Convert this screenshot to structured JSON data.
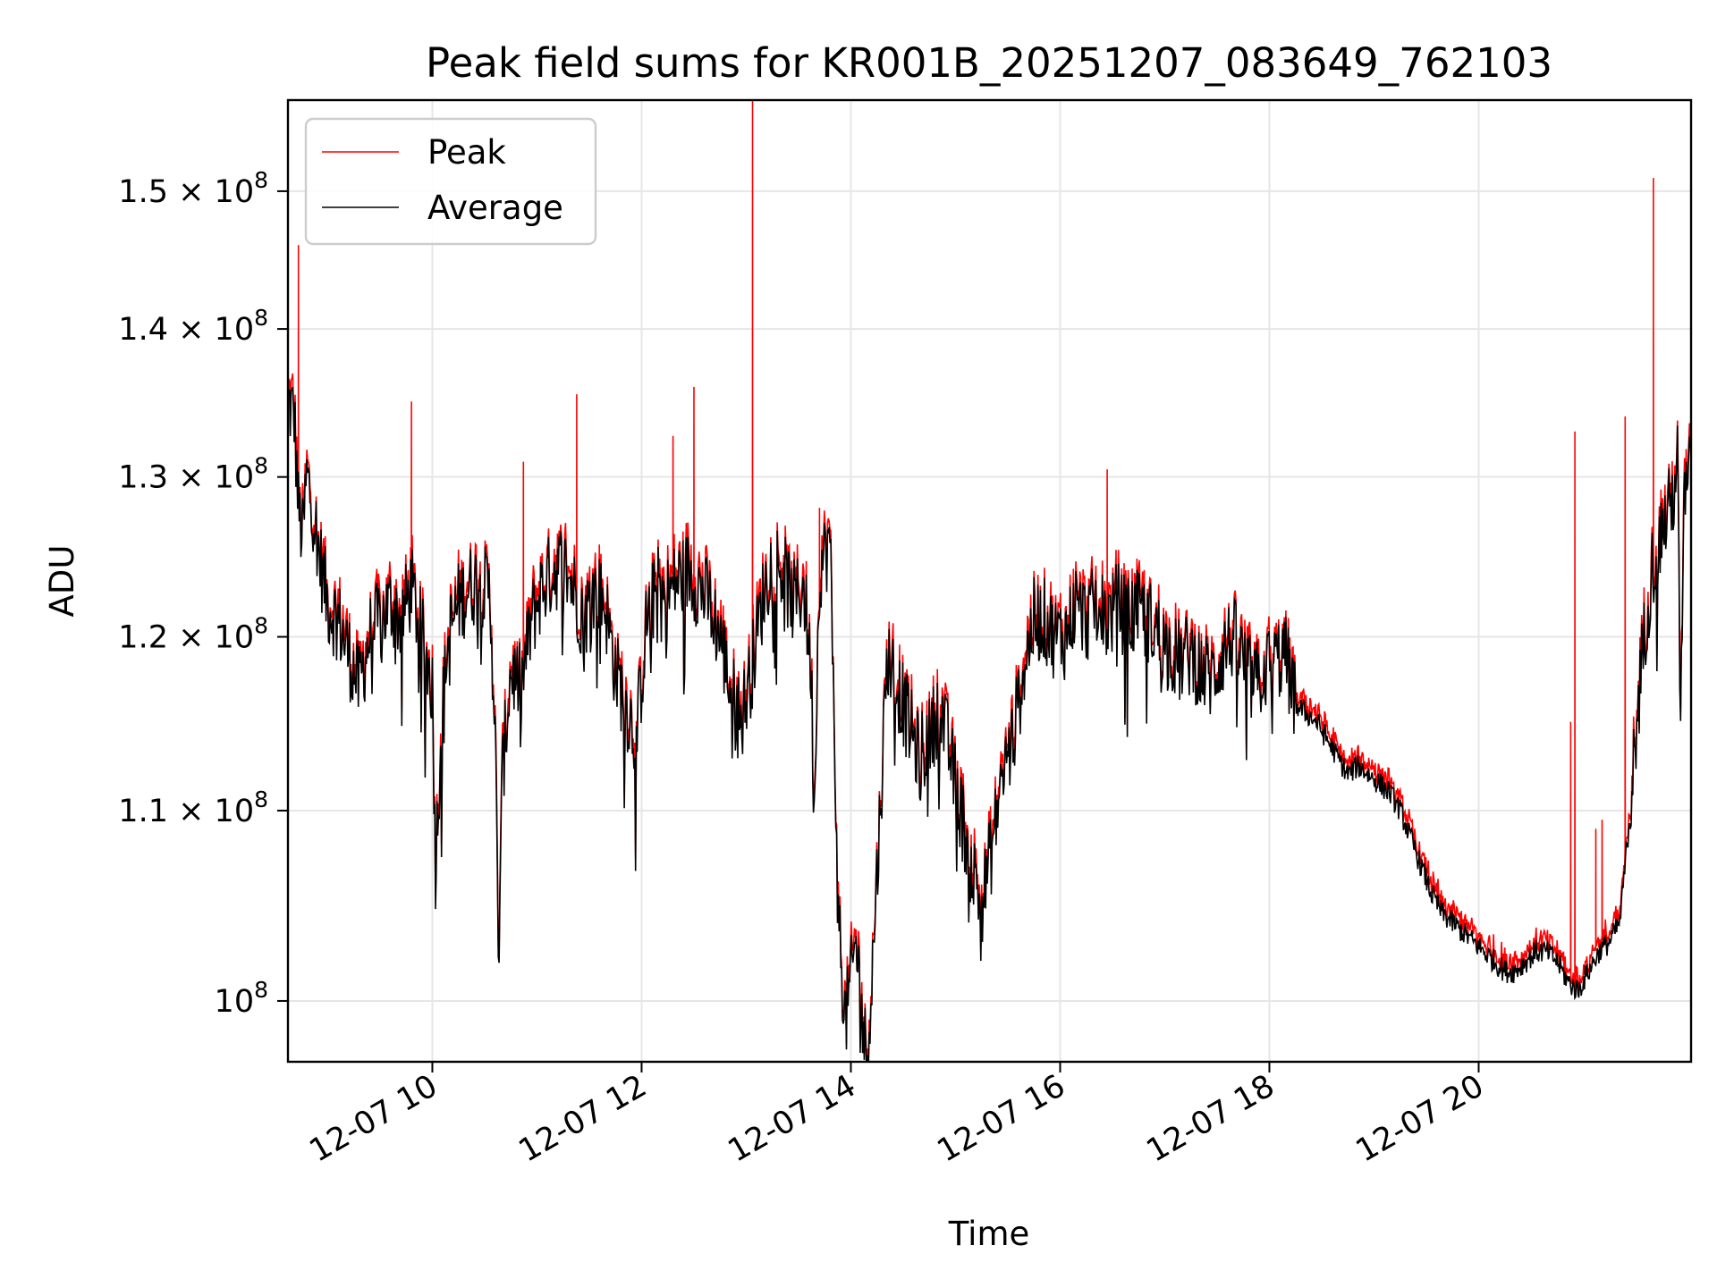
{
  "chart_data": {
    "type": "line",
    "title": "Peak field sums for KR001B_20251207_083649_762103",
    "xlabel": "Time",
    "ylabel": "ADU",
    "y_scale": "log",
    "ylim": [
      97000000,
      157000000
    ],
    "xlim_hours": [
      8.62,
      22.03
    ],
    "grid": true,
    "legend_position": "upper left",
    "x_tick_hours": [
      10,
      12,
      14,
      16,
      18,
      20
    ],
    "x_tick_labels": [
      "12-07 10",
      "12-07 12",
      "12-07 14",
      "12-07 16",
      "12-07 18",
      "12-07 20"
    ],
    "y_ticks": [
      {
        "value": 100000000,
        "mantissa": "",
        "exponent": "8"
      },
      {
        "value": 110000000,
        "mantissa": "1.1",
        "exponent": "8"
      },
      {
        "value": 120000000,
        "mantissa": "1.2",
        "exponent": "8"
      },
      {
        "value": 130000000,
        "mantissa": "1.3",
        "exponent": "8"
      },
      {
        "value": 140000000,
        "mantissa": "1.4",
        "exponent": "8"
      },
      {
        "value": 150000000,
        "mantissa": "1.5",
        "exponent": "8"
      }
    ],
    "series": [
      {
        "name": "Peak",
        "color": "#ff0000"
      },
      {
        "name": "Average",
        "color": "#000000"
      }
    ],
    "average_points": [
      [
        8.62,
        135000000
      ],
      [
        8.68,
        134000000
      ],
      [
        8.72,
        128000000
      ],
      [
        8.76,
        126000000
      ],
      [
        8.8,
        130000000
      ],
      [
        8.86,
        128000000
      ],
      [
        8.92,
        125000000
      ],
      [
        9.0,
        122000000
      ],
      [
        9.1,
        121000000
      ],
      [
        9.2,
        119000000
      ],
      [
        9.3,
        117000000
      ],
      [
        9.4,
        120000000
      ],
      [
        9.5,
        121000000
      ],
      [
        9.6,
        122000000
      ],
      [
        9.7,
        121000000
      ],
      [
        9.8,
        123000000
      ],
      [
        9.9,
        120000000
      ],
      [
        10.0,
        117000000
      ],
      [
        10.03,
        107000000
      ],
      [
        10.08,
        114000000
      ],
      [
        10.15,
        120000000
      ],
      [
        10.25,
        122000000
      ],
      [
        10.35,
        123000000
      ],
      [
        10.45,
        123500000
      ],
      [
        10.55,
        122500000
      ],
      [
        10.6,
        115000000
      ],
      [
        10.63,
        101500000
      ],
      [
        10.67,
        112000000
      ],
      [
        10.75,
        118000000
      ],
      [
        10.85,
        117000000
      ],
      [
        10.95,
        121000000
      ],
      [
        11.05,
        123000000
      ],
      [
        11.15,
        124000000
      ],
      [
        11.25,
        124500000
      ],
      [
        11.35,
        123000000
      ],
      [
        11.45,
        121000000
      ],
      [
        11.55,
        123000000
      ],
      [
        11.65,
        122000000
      ],
      [
        11.75,
        118000000
      ],
      [
        11.85,
        116000000
      ],
      [
        11.95,
        114000000
      ],
      [
        12.05,
        121000000
      ],
      [
        12.15,
        123000000
      ],
      [
        12.25,
        122500000
      ],
      [
        12.35,
        123500000
      ],
      [
        12.45,
        124000000
      ],
      [
        12.55,
        123000000
      ],
      [
        12.65,
        122000000
      ],
      [
        12.75,
        120000000
      ],
      [
        12.85,
        117000000
      ],
      [
        12.95,
        115000000
      ],
      [
        13.05,
        118000000
      ],
      [
        13.15,
        122000000
      ],
      [
        13.25,
        125000000
      ],
      [
        13.35,
        124000000
      ],
      [
        13.45,
        122000000
      ],
      [
        13.55,
        123000000
      ],
      [
        13.62,
        118000000
      ],
      [
        13.65,
        110000000
      ],
      [
        13.7,
        124000000
      ],
      [
        13.8,
        126000000
      ],
      [
        13.88,
        104000000
      ],
      [
        13.95,
        99000000
      ],
      [
        14.05,
        103000000
      ],
      [
        14.12,
        98500000
      ],
      [
        14.15,
        97200000
      ],
      [
        14.2,
        101000000
      ],
      [
        14.28,
        110000000
      ],
      [
        14.35,
        119000000
      ],
      [
        14.45,
        117000000
      ],
      [
        14.55,
        115000000
      ],
      [
        14.65,
        113000000
      ],
      [
        14.75,
        114000000
      ],
      [
        14.85,
        116000000
      ],
      [
        14.95,
        113000000
      ],
      [
        15.05,
        110000000
      ],
      [
        15.15,
        107000000
      ],
      [
        15.25,
        105000000
      ],
      [
        15.35,
        108000000
      ],
      [
        15.45,
        112000000
      ],
      [
        15.55,
        114000000
      ],
      [
        15.65,
        118000000
      ],
      [
        15.75,
        121000000
      ],
      [
        15.85,
        121000000
      ],
      [
        15.95,
        120000000
      ],
      [
        16.05,
        120000000
      ],
      [
        16.15,
        122000000
      ],
      [
        16.25,
        121000000
      ],
      [
        16.35,
        122000000
      ],
      [
        16.45,
        121000000
      ],
      [
        16.55,
        122000000
      ],
      [
        16.65,
        121000000
      ],
      [
        16.75,
        121500000
      ],
      [
        16.85,
        121000000
      ],
      [
        16.95,
        120000000
      ],
      [
        17.05,
        119000000
      ],
      [
        17.15,
        118500000
      ],
      [
        17.25,
        119000000
      ],
      [
        17.35,
        118000000
      ],
      [
        17.45,
        117500000
      ],
      [
        17.55,
        119000000
      ],
      [
        17.65,
        120000000
      ],
      [
        17.75,
        118500000
      ],
      [
        17.85,
        117000000
      ],
      [
        17.95,
        118000000
      ],
      [
        18.05,
        118500000
      ],
      [
        18.15,
        119000000
      ],
      [
        18.25,
        116000000
      ],
      [
        18.35,
        115500000
      ],
      [
        18.45,
        115000000
      ],
      [
        18.55,
        114000000
      ],
      [
        18.65,
        113000000
      ],
      [
        18.75,
        112000000
      ],
      [
        18.85,
        112500000
      ],
      [
        18.95,
        112000000
      ],
      [
        19.05,
        111500000
      ],
      [
        19.15,
        111000000
      ],
      [
        19.25,
        110000000
      ],
      [
        19.35,
        108500000
      ],
      [
        19.45,
        107000000
      ],
      [
        19.55,
        105500000
      ],
      [
        19.65,
        104500000
      ],
      [
        19.75,
        104000000
      ],
      [
        19.85,
        103500000
      ],
      [
        19.95,
        103000000
      ],
      [
        20.05,
        102500000
      ],
      [
        20.15,
        102000000
      ],
      [
        20.25,
        101500000
      ],
      [
        20.35,
        101500000
      ],
      [
        20.45,
        102000000
      ],
      [
        20.55,
        102500000
      ],
      [
        20.65,
        102500000
      ],
      [
        20.75,
        102000000
      ],
      [
        20.85,
        101000000
      ],
      [
        20.95,
        100500000
      ],
      [
        21.05,
        101500000
      ],
      [
        21.15,
        102500000
      ],
      [
        21.25,
        103000000
      ],
      [
        21.35,
        104000000
      ],
      [
        21.45,
        110000000
      ],
      [
        21.55,
        118000000
      ],
      [
        21.65,
        124000000
      ],
      [
        21.75,
        126500000
      ],
      [
        21.85,
        128500000
      ],
      [
        21.9,
        131000000
      ],
      [
        21.93,
        114000000
      ],
      [
        21.96,
        128000000
      ],
      [
        22.03,
        130500000
      ]
    ],
    "peak_spikes": [
      [
        8.72,
        146000000
      ],
      [
        9.8,
        135000000
      ],
      [
        10.87,
        131000000
      ],
      [
        11.38,
        135500000
      ],
      [
        12.3,
        132700000
      ],
      [
        12.5,
        136000000
      ],
      [
        13.06,
        157000000
      ],
      [
        13.7,
        128000000
      ],
      [
        16.45,
        130500000
      ],
      [
        20.88,
        115000000
      ],
      [
        20.92,
        133000000
      ],
      [
        21.12,
        109000000
      ],
      [
        21.18,
        109500000
      ],
      [
        21.4,
        134000000
      ],
      [
        21.67,
        151000000
      ]
    ]
  }
}
